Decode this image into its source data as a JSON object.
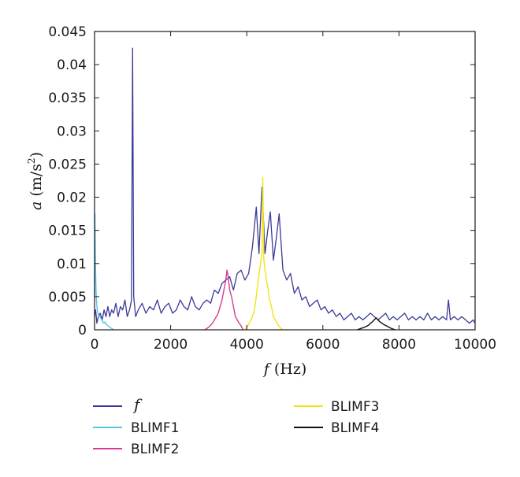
{
  "chart_data": {
    "type": "line",
    "xlabel_var": "f",
    "xlabel_unit": " (Hz)",
    "ylabel_var": "a",
    "ylabel_unit": " (m/s",
    "ylabel_sup": "2",
    "ylabel_close": ")",
    "xlim": [
      0,
      10000
    ],
    "ylim": [
      0,
      0.045
    ],
    "x_ticks": [
      0,
      2000,
      4000,
      6000,
      8000,
      10000
    ],
    "x_tick_labels": [
      "0",
      "2000",
      "4000",
      "6000",
      "8000",
      "10000"
    ],
    "y_ticks": [
      0,
      0.005,
      0.01,
      0.015,
      0.02,
      0.025,
      0.03,
      0.035,
      0.04,
      0.045
    ],
    "y_tick_labels": [
      "0",
      "0.005",
      "0.01",
      "0.015",
      "0.02",
      "0.025",
      "0.03",
      "0.035",
      "0.04",
      "0.045"
    ],
    "grid": false,
    "legend_position": "below",
    "series": [
      {
        "name": "f",
        "color": "#3a3a98",
        "x": [
          0,
          30,
          60,
          100,
          150,
          200,
          250,
          300,
          350,
          400,
          450,
          500,
          560,
          620,
          680,
          740,
          800,
          860,
          920,
          970,
          1000,
          1030,
          1080,
          1150,
          1250,
          1350,
          1450,
          1550,
          1650,
          1750,
          1850,
          1950,
          2050,
          2150,
          2250,
          2350,
          2450,
          2550,
          2650,
          2750,
          2850,
          2950,
          3050,
          3150,
          3250,
          3350,
          3450,
          3550,
          3650,
          3750,
          3850,
          3950,
          4050,
          4150,
          4250,
          4320,
          4400,
          4480,
          4550,
          4620,
          4700,
          4780,
          4850,
          4950,
          5050,
          5150,
          5250,
          5350,
          5450,
          5550,
          5650,
          5750,
          5850,
          5950,
          6050,
          6150,
          6250,
          6350,
          6450,
          6550,
          6650,
          6750,
          6850,
          6950,
          7050,
          7150,
          7250,
          7350,
          7450,
          7550,
          7650,
          7750,
          7850,
          7950,
          8050,
          8150,
          8250,
          8350,
          8450,
          8550,
          8650,
          8750,
          8850,
          8950,
          9050,
          9150,
          9250,
          9300,
          9350,
          9450,
          9550,
          9650,
          9750,
          9850,
          9950,
          10000
        ],
        "y": [
          0.002,
          0.003,
          0.001,
          0.002,
          0.0025,
          0.0015,
          0.003,
          0.002,
          0.0035,
          0.002,
          0.003,
          0.0025,
          0.004,
          0.002,
          0.0035,
          0.003,
          0.0045,
          0.002,
          0.003,
          0.0045,
          0.0425,
          0.005,
          0.002,
          0.003,
          0.004,
          0.0025,
          0.0035,
          0.003,
          0.0045,
          0.0025,
          0.0035,
          0.004,
          0.0025,
          0.003,
          0.0045,
          0.0035,
          0.003,
          0.005,
          0.0035,
          0.003,
          0.004,
          0.0045,
          0.004,
          0.006,
          0.0055,
          0.007,
          0.0075,
          0.008,
          0.006,
          0.0085,
          0.009,
          0.0075,
          0.0085,
          0.0125,
          0.0185,
          0.0115,
          0.0215,
          0.0115,
          0.015,
          0.0178,
          0.0105,
          0.014,
          0.0175,
          0.009,
          0.0075,
          0.0085,
          0.0055,
          0.0065,
          0.0045,
          0.005,
          0.0035,
          0.004,
          0.0045,
          0.003,
          0.0035,
          0.0025,
          0.003,
          0.002,
          0.0025,
          0.0015,
          0.002,
          0.0025,
          0.0015,
          0.002,
          0.0015,
          0.002,
          0.0025,
          0.002,
          0.0015,
          0.002,
          0.0025,
          0.0015,
          0.002,
          0.0015,
          0.002,
          0.0025,
          0.0015,
          0.002,
          0.0015,
          0.002,
          0.0015,
          0.0025,
          0.0015,
          0.002,
          0.0015,
          0.002,
          0.0015,
          0.0045,
          0.0015,
          0.002,
          0.0015,
          0.002,
          0.0015,
          0.001,
          0.0015,
          0.001
        ]
      },
      {
        "name": "BLIMF1",
        "color": "#5ec3e6",
        "x": [
          0,
          10,
          20,
          30,
          40,
          50,
          70,
          90,
          110,
          130,
          160,
          190,
          220,
          250,
          280,
          310,
          350,
          400,
          450,
          500
        ],
        "y": [
          0.005,
          0.0175,
          0.012,
          0.0085,
          0.006,
          0.0045,
          0.003,
          0.0025,
          0.002,
          0.0022,
          0.0018,
          0.0015,
          0.0012,
          0.001,
          0.0012,
          0.0008,
          0.0006,
          0.0004,
          0.0002,
          0.0
        ]
      },
      {
        "name": "BLIMF2",
        "color": "#d63c93",
        "x": [
          2900,
          3000,
          3100,
          3200,
          3250,
          3300,
          3350,
          3400,
          3450,
          3480,
          3500,
          3550,
          3600,
          3650,
          3700,
          3750,
          3800,
          3850,
          3900
        ],
        "y": [
          0.0,
          0.0004,
          0.001,
          0.002,
          0.0025,
          0.0035,
          0.0045,
          0.006,
          0.0075,
          0.009,
          0.0085,
          0.006,
          0.005,
          0.0035,
          0.002,
          0.0015,
          0.001,
          0.0006,
          0.0
        ]
      },
      {
        "name": "BLIMF3",
        "color": "#f2e21a",
        "x": [
          3950,
          4050,
          4150,
          4200,
          4250,
          4300,
          4350,
          4400,
          4420,
          4450,
          4500,
          4550,
          4600,
          4650,
          4700,
          4750,
          4800,
          4850,
          4950
        ],
        "y": [
          0.0,
          0.0008,
          0.002,
          0.003,
          0.005,
          0.0075,
          0.0095,
          0.0115,
          0.023,
          0.0105,
          0.008,
          0.0065,
          0.0045,
          0.0035,
          0.002,
          0.0015,
          0.001,
          0.0005,
          0.0
        ]
      },
      {
        "name": "BLIMF4",
        "color": "#111111",
        "x": [
          6900,
          7000,
          7100,
          7200,
          7250,
          7300,
          7350,
          7400,
          7450,
          7500,
          7550,
          7600,
          7700,
          7800,
          7900
        ],
        "y": [
          0.0,
          0.0002,
          0.0004,
          0.0007,
          0.001,
          0.0012,
          0.0015,
          0.0018,
          0.0015,
          0.0012,
          0.001,
          0.0008,
          0.0005,
          0.0002,
          0.0
        ]
      }
    ]
  }
}
